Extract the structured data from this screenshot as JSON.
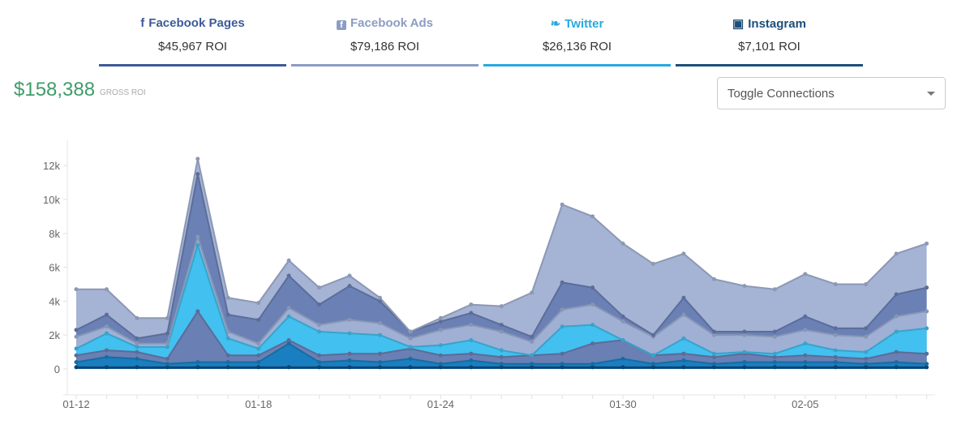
{
  "tabs": [
    {
      "title": "Facebook Pages",
      "value": "$45,967 ROI",
      "icon": "facebook-f-icon",
      "color": "#3d5a99"
    },
    {
      "title": "Facebook Ads",
      "value": "$79,186 ROI",
      "icon": "facebook-square-icon",
      "color": "#8b9dc3"
    },
    {
      "title": "Twitter",
      "value": "$26,136 ROI",
      "icon": "twitter-bird-icon",
      "color": "#29a9e0"
    },
    {
      "title": "Instagram",
      "value": "$7,101 ROI",
      "icon": "instagram-icon",
      "color": "#1d4f7a"
    }
  ],
  "gross": {
    "value": "$158,388",
    "label": "GROSS ROI"
  },
  "toggle": {
    "label": "Toggle Connections"
  },
  "chart_data": {
    "type": "area",
    "stacked": true,
    "x": [
      "01-12",
      "01-13",
      "01-14",
      "01-15",
      "01-16",
      "01-17",
      "01-18",
      "01-19",
      "01-20",
      "01-21",
      "01-22",
      "01-23",
      "01-24",
      "01-25",
      "01-26",
      "01-27",
      "01-28",
      "01-29",
      "01-30",
      "01-31",
      "02-01",
      "02-02",
      "02-03",
      "02-04",
      "02-05",
      "02-06",
      "02-07",
      "02-08",
      "02-09"
    ],
    "xticks": [
      "01-12",
      "01-18",
      "01-24",
      "01-30",
      "02-05"
    ],
    "yticks": [
      "0",
      "2k",
      "4k",
      "6k",
      "8k",
      "10k",
      "12k"
    ],
    "ytick_values": [
      0,
      2000,
      4000,
      6000,
      8000,
      10000,
      12000
    ],
    "ylim": [
      -1500,
      13500
    ],
    "series": [
      {
        "color": "#0f4f85",
        "values": [
          100,
          100,
          100,
          100,
          100,
          100,
          100,
          100,
          100,
          100,
          100,
          100,
          100,
          100,
          100,
          100,
          100,
          100,
          100,
          100,
          100,
          100,
          100,
          100,
          100,
          100,
          100,
          100,
          100
        ]
      },
      {
        "color": "#1a7fc0",
        "values": [
          300,
          600,
          500,
          200,
          300,
          300,
          300,
          1400,
          300,
          400,
          300,
          500,
          200,
          400,
          200,
          200,
          200,
          200,
          500,
          200,
          400,
          200,
          300,
          300,
          300,
          300,
          200,
          300,
          200
        ]
      },
      {
        "color": "#6a7fb3",
        "values": [
          400,
          400,
          400,
          300,
          3000,
          400,
          400,
          200,
          400,
          400,
          500,
          600,
          500,
          400,
          400,
          500,
          600,
          1200,
          1100,
          500,
          400,
          400,
          500,
          300,
          400,
          300,
          300,
          600,
          600
        ]
      },
      {
        "color": "#42c0ef",
        "values": [
          400,
          1000,
          300,
          700,
          3900,
          1000,
          400,
          1400,
          1400,
          1200,
          1100,
          100,
          600,
          800,
          400,
          0,
          1600,
          1100,
          0,
          0,
          900,
          200,
          100,
          200,
          700,
          400,
          400,
          1200,
          1500
        ]
      },
      {
        "color": "#9fb0d4",
        "values": [
          700,
          400,
          200,
          200,
          500,
          400,
          300,
          500,
          400,
          800,
          700,
          500,
          900,
          900,
          1100,
          800,
          1000,
          1200,
          1100,
          1100,
          1400,
          1100,
          1000,
          1000,
          800,
          900,
          900,
          900,
          1000
        ]
      },
      {
        "color": "#6b80b4",
        "values": [
          400,
          700,
          300,
          600,
          3700,
          1000,
          1400,
          1900,
          1200,
          2000,
          1300,
          400,
          500,
          700,
          400,
          300,
          1600,
          1000,
          300,
          100,
          1000,
          200,
          200,
          300,
          800,
          400,
          500,
          1300,
          1400
        ]
      },
      {
        "color": "#a5b3d4",
        "values": [
          2400,
          1500,
          1200,
          900,
          900,
          1000,
          1000,
          900,
          1000,
          600,
          200,
          0,
          200,
          500,
          1100,
          2600,
          4600,
          4200,
          4300,
          4200,
          2600,
          3100,
          2700,
          2500,
          2500,
          2600,
          2600,
          2400,
          2600
        ]
      }
    ]
  }
}
